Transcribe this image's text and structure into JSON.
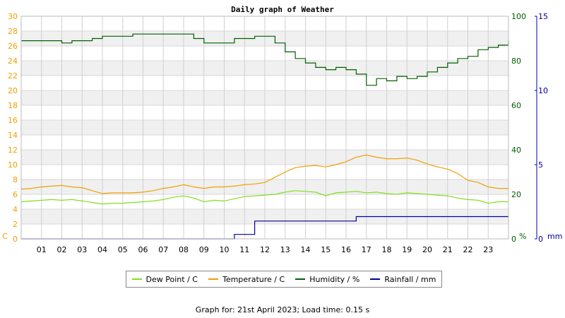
{
  "chart_data": {
    "type": "line",
    "title": "Daily graph of Weather",
    "xlabel": "",
    "x_hours": [
      0,
      0.5,
      1,
      1.5,
      2,
      2.5,
      3,
      3.5,
      4,
      4.5,
      5,
      5.5,
      6,
      6.5,
      7,
      7.5,
      8,
      8.5,
      9,
      9.5,
      10,
      10.5,
      11,
      11.5,
      12,
      12.5,
      13,
      13.5,
      14,
      14.5,
      15,
      15.5,
      16,
      16.5,
      17,
      17.5,
      18,
      18.5,
      19,
      19.5,
      20,
      20.5,
      21,
      21.5,
      22,
      22.5,
      23,
      23.5,
      24
    ],
    "x_tick_labels": [
      "01",
      "02",
      "03",
      "04",
      "05",
      "06",
      "07",
      "08",
      "09",
      "10",
      "11",
      "12",
      "13",
      "14",
      "15",
      "16",
      "17",
      "18",
      "19",
      "20",
      "21",
      "22",
      "23"
    ],
    "left_axis": {
      "unit": "C",
      "ylim": [
        0,
        30
      ],
      "ticks": [
        "0",
        "2",
        "4",
        "6",
        "8",
        "10",
        "12",
        "14",
        "16",
        "18",
        "20",
        "22",
        "24",
        "26",
        "28",
        "30"
      ],
      "color": "#f0a000"
    },
    "right_axis_humidity": {
      "unit": "%",
      "ylim": [
        0,
        100
      ],
      "ticks": [
        "0",
        "20",
        "40",
        "60",
        "80",
        "100"
      ],
      "color": "#006000"
    },
    "right_axis_rain": {
      "unit": "mm",
      "ylim": [
        0,
        15
      ],
      "ticks": [
        "0",
        "5",
        "10",
        "15"
      ],
      "color": "#0000a0"
    },
    "grid": true,
    "legend_position": "bottom-center",
    "series": [
      {
        "name": "Dew Point / C",
        "axis": "left",
        "color": "#80e020",
        "values": [
          5.0,
          5.1,
          5.2,
          5.3,
          5.2,
          5.3,
          5.1,
          4.9,
          4.7,
          4.8,
          4.8,
          4.9,
          5.0,
          5.1,
          5.3,
          5.6,
          5.8,
          5.5,
          5.0,
          5.2,
          5.1,
          5.4,
          5.7,
          5.8,
          5.9,
          6.0,
          6.3,
          6.5,
          6.4,
          6.3,
          5.8,
          6.2,
          6.3,
          6.4,
          6.2,
          6.3,
          6.1,
          6.0,
          6.2,
          6.1,
          6.0,
          5.9,
          5.8,
          5.5,
          5.3,
          5.2,
          4.8,
          5.0,
          5.0
        ]
      },
      {
        "name": "Temperature / C",
        "axis": "left",
        "color": "#f0a000",
        "values": [
          6.7,
          6.8,
          7.0,
          7.1,
          7.2,
          7.0,
          6.9,
          6.5,
          6.1,
          6.2,
          6.2,
          6.2,
          6.3,
          6.5,
          6.8,
          7.0,
          7.3,
          7.0,
          6.8,
          7.0,
          7.0,
          7.1,
          7.3,
          7.4,
          7.6,
          8.3,
          9.0,
          9.6,
          9.8,
          9.9,
          9.7,
          10.0,
          10.4,
          11.0,
          11.3,
          11.0,
          10.8,
          10.8,
          10.9,
          10.6,
          10.1,
          9.7,
          9.4,
          8.8,
          7.9,
          7.6,
          7.0,
          6.8,
          6.8
        ]
      },
      {
        "name": "Humidity / %",
        "axis": "humidity",
        "color": "#006000",
        "values": [
          89,
          89,
          89,
          89,
          88,
          89,
          89,
          90,
          91,
          91,
          91,
          92,
          92,
          92,
          92,
          92,
          92,
          90,
          88,
          88,
          88,
          90,
          90,
          91,
          91,
          88,
          84,
          81,
          79,
          77,
          76,
          77,
          76,
          74,
          69,
          72,
          71,
          73,
          72,
          73,
          75,
          77,
          79,
          81,
          82,
          85,
          86,
          87,
          89
        ]
      },
      {
        "name": "Rainfall / mm",
        "axis": "rain",
        "color": "#0000a0",
        "values": [
          0,
          0,
          0,
          0,
          0,
          0,
          0,
          0,
          0,
          0,
          0,
          0,
          0,
          0,
          0,
          0,
          0,
          0,
          0,
          0,
          0,
          0.3,
          0.3,
          1.2,
          1.2,
          1.2,
          1.2,
          1.2,
          1.2,
          1.2,
          1.2,
          1.2,
          1.2,
          1.5,
          1.5,
          1.5,
          1.5,
          1.5,
          1.5,
          1.5,
          1.5,
          1.5,
          1.5,
          1.5,
          1.5,
          1.5,
          1.5,
          1.5,
          1.5
        ]
      }
    ]
  },
  "legend": [
    {
      "label": "Dew Point / C",
      "color": "#80e020"
    },
    {
      "label": "Temperature / C",
      "color": "#f0a000"
    },
    {
      "label": "Humidity / %",
      "color": "#006000"
    },
    {
      "label": "Rainfall / mm",
      "color": "#0000a0"
    }
  ],
  "footer": "Graph for: 21st April 2023; Load time: 0.15 s"
}
